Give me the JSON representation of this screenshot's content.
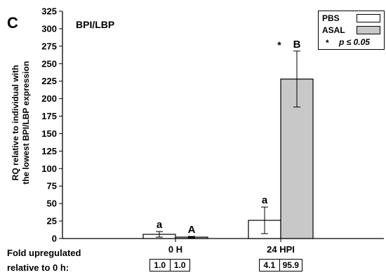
{
  "panel_label": "C",
  "chart_data": {
    "type": "bar",
    "title": "BPI/LBP",
    "ylabel": "RQ relative to individual with the lowest BPI/LBP expression",
    "ylabel_lines": [
      "RQ relative to individual with",
      "the lowest BPI/LBP expression"
    ],
    "ylim": [
      0,
      325
    ],
    "yticks": [
      0,
      25,
      50,
      75,
      100,
      125,
      150,
      175,
      200,
      225,
      250,
      275,
      300,
      325
    ],
    "categories": [
      "0 H",
      "24 HPI"
    ],
    "series": [
      {
        "name": "PBS",
        "color": "#ffffff",
        "values": [
          6,
          26
        ],
        "errors": [
          4,
          19
        ],
        "labels": [
          "a",
          "a"
        ]
      },
      {
        "name": "ASAL",
        "color": "#c8c8c8",
        "values": [
          2,
          228
        ],
        "errors": [
          1,
          40
        ],
        "labels": [
          "A",
          "B"
        ]
      }
    ],
    "significance": [
      {
        "category": "24 HPI",
        "marker": "*"
      }
    ],
    "legend": {
      "position": "top-right",
      "note_marker": "*",
      "note_text": "p ≤ 0.05"
    },
    "fold_label_lines": [
      "Fold upregulated",
      "relative to 0 h:"
    ],
    "fold_values": [
      [
        "1.0",
        "1.0"
      ],
      [
        "4.1",
        "95.9"
      ]
    ]
  }
}
